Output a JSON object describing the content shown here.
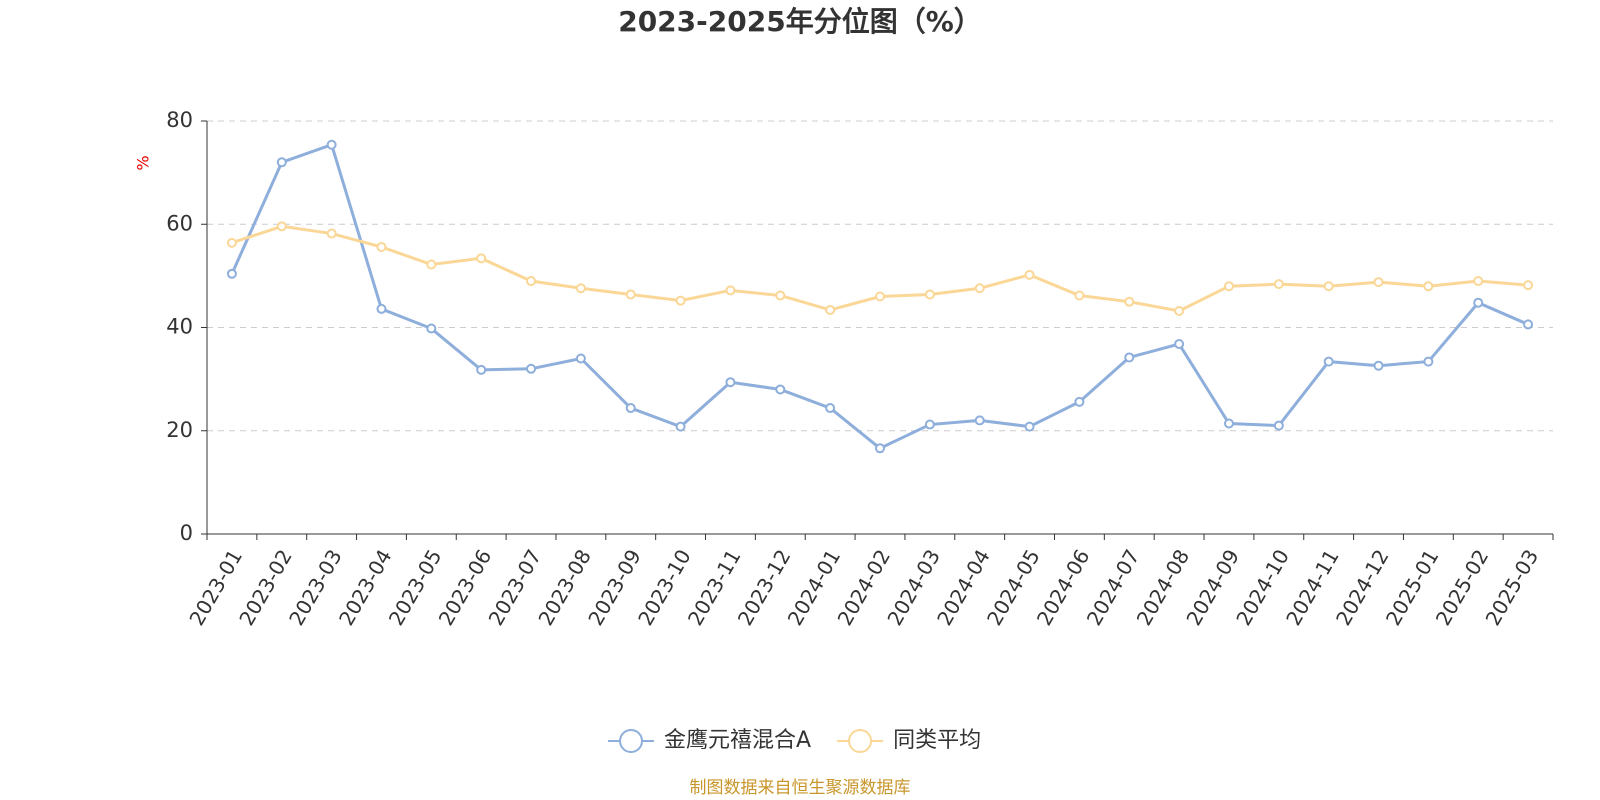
{
  "chart_data": {
    "type": "line",
    "title": "2023-2025年分位图（%）",
    "y_label": "%",
    "categories": [
      "2023-01",
      "2023-02",
      "2023-03",
      "2023-04",
      "2023-05",
      "2023-06",
      "2023-07",
      "2023-08",
      "2023-09",
      "2023-10",
      "2023-11",
      "2023-12",
      "2024-01",
      "2024-02",
      "2024-03",
      "2024-04",
      "2024-05",
      "2024-06",
      "2024-07",
      "2024-08",
      "2024-09",
      "2024-10",
      "2024-11",
      "2024-12",
      "2025-01",
      "2025-02",
      "2025-03"
    ],
    "series": [
      {
        "name": "金鹰元禧混合A",
        "color": "#8eaedb",
        "values": [
          50.4,
          72,
          75.4,
          43.6,
          39.8,
          31.8,
          32,
          34,
          24.4,
          20.8,
          29.4,
          28,
          24.4,
          16.6,
          21.2,
          22,
          20.8,
          25.6,
          34.2,
          36.8,
          21.4,
          21,
          33.4,
          32.6,
          33.4,
          44.8,
          40.6
        ]
      },
      {
        "name": "同类平均",
        "color": "#fad796",
        "values": [
          56.4,
          59.6,
          58.2,
          55.6,
          52.2,
          53.4,
          49,
          47.6,
          46.4,
          45.2,
          47.2,
          46.2,
          43.4,
          46,
          46.4,
          47.6,
          50.2,
          46.2,
          45,
          43.2,
          48,
          48.4,
          48,
          48.8,
          48,
          49,
          48.2
        ]
      }
    ],
    "ylim": [
      0,
      80
    ],
    "yticks": [
      0,
      20,
      40,
      60,
      80
    ],
    "grid": true,
    "legend": "bottom",
    "source": "制图数据来自恒生聚源数据库"
  }
}
